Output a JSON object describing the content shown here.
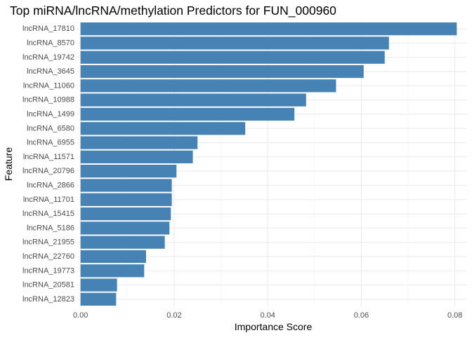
{
  "chart_data": {
    "type": "bar",
    "orientation": "horizontal",
    "title": "Top miRNA/lncRNA/methylation Predictors for FUN_000960",
    "xlabel": "Importance Score",
    "ylabel": "Feature",
    "xlim": [
      -0.0007,
      0.0826
    ],
    "xticks": [
      0.0,
      0.02,
      0.04,
      0.06,
      0.08
    ],
    "xtick_labels": [
      "0.00",
      "0.02",
      "0.04",
      "0.06",
      "0.08"
    ],
    "grid": true,
    "legend": "none",
    "bar_color": "#4682B4",
    "categories": [
      "lncRNA_17810",
      "lncRNA_8570",
      "lncRNA_19742",
      "lncRNA_3645",
      "lncRNA_11060",
      "lncRNA_10988",
      "lncRNA_1499",
      "lncRNA_6580",
      "lncRNA_6955",
      "lncRNA_11571",
      "lncRNA_20796",
      "lncRNA_2866",
      "lncRNA_11701",
      "lncRNA_15415",
      "lncRNA_5186",
      "lncRNA_21955",
      "lncRNA_22760",
      "lncRNA_19773",
      "lncRNA_20581",
      "lncRNA_12823"
    ],
    "values": [
      0.0804,
      0.0659,
      0.065,
      0.0605,
      0.0546,
      0.0482,
      0.0457,
      0.0352,
      0.025,
      0.024,
      0.0205,
      0.0195,
      0.0195,
      0.0193,
      0.019,
      0.018,
      0.014,
      0.0136,
      0.0078,
      0.0076
    ]
  }
}
